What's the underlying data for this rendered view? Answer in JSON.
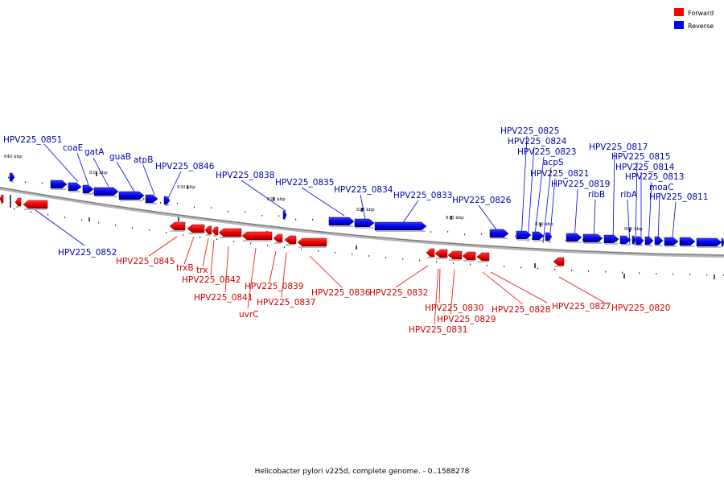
{
  "caption": "Helicobacter pylori v225d, complete genome. - 0..1588278",
  "legend": [
    {
      "label": "Forward",
      "color": "#ff0000"
    },
    {
      "label": "Reverse",
      "color": "#0000ff"
    }
  ],
  "scale_ticks": [
    "840 kbp",
    "835 kbp",
    "830 kbp",
    "825 kbp",
    "820 kbp",
    "815 kbp",
    "810 kbp",
    "805 kbp"
  ],
  "reverse_genes": [
    "HPV225_0851",
    "coaE",
    "gatA",
    "guaB",
    "atpB",
    "HPV225_0846",
    "HPV225_0852",
    "HPV225_0838",
    "HPV225_0835",
    "HPV225_0834",
    "HPV225_0833",
    "HPV225_0826",
    "HPV225_0825",
    "HPV225_0824",
    "HPV225_0823",
    "acpS",
    "HPV225_0821",
    "HPV225_0819",
    "ribB",
    "HPV225_0817",
    "HPV225_0815",
    "HPV225_0814",
    "HPV225_0813",
    "ribA",
    "moaC",
    "HPV225_0811"
  ],
  "forward_genes": [
    "HPV225_0845",
    "trxB",
    "trx",
    "HPV225_0842",
    "HPV225_0841",
    "uvrC",
    "HPV225_0839",
    "HPV225_0837",
    "HPV225_0836",
    "HPV225_0832",
    "HPV225_0830",
    "HPV225_0831",
    "HPV225_0829",
    "HPV225_0828",
    "HPV225_0827",
    "HPV225_0820"
  ]
}
